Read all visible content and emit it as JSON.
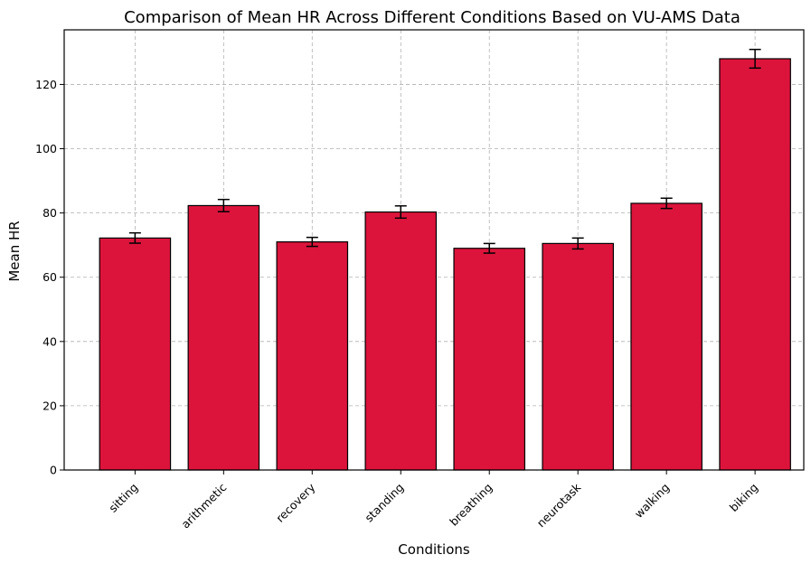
{
  "chart_data": {
    "type": "bar",
    "title": "Comparison of Mean HR Across Different Conditions Based on VU-AMS Data",
    "xlabel": "Conditions",
    "ylabel": "Mean HR",
    "categories": [
      "sitting",
      "arithmetic",
      "recovery",
      "standing",
      "breathing",
      "neurotask",
      "walking",
      "biking"
    ],
    "values": [
      72.2,
      82.3,
      71.0,
      80.3,
      69.0,
      70.5,
      83.0,
      128.0
    ],
    "errors": [
      1.6,
      1.9,
      1.4,
      1.9,
      1.5,
      1.7,
      1.6,
      2.9
    ],
    "ylim": [
      0,
      137
    ],
    "yticks": [
      0,
      20,
      40,
      60,
      80,
      100,
      120
    ],
    "grid": true,
    "bar_color": "#dc143c",
    "edge_color": "#000000",
    "x_tick_rotation_deg": -45
  }
}
